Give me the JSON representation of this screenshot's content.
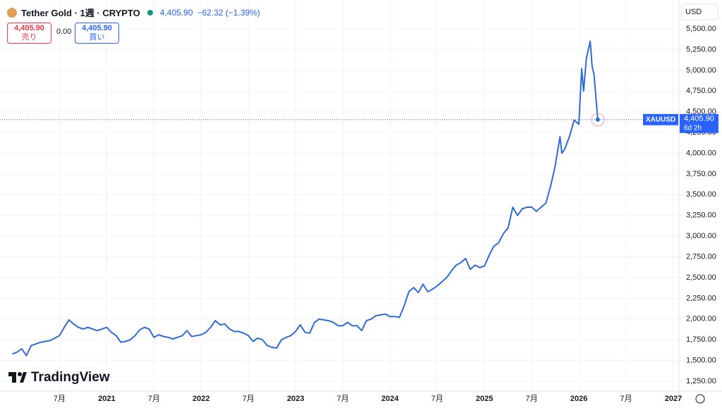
{
  "header": {
    "symbol": "Tether Gold · 1週 · CRYPTO",
    "price": "4,405.90",
    "change": "−62.32 (−1.39%)",
    "sell_price": "4,405.90",
    "sell_label": "売り",
    "spread": "0.00",
    "buy_price": "4,405.90",
    "buy_label": "買い",
    "currency": "USD",
    "logo": "TradingView",
    "last_price_label": "4,405.90",
    "countdown": "6d 2h"
  },
  "chart_data": {
    "type": "line",
    "series": [
      {
        "name": "XAUUSD",
        "color": "#2f6bd8",
        "x": [
          2020.0,
          2020.05,
          2020.1,
          2020.15,
          2020.2,
          2020.25,
          2020.3,
          2020.35,
          2020.4,
          2020.45,
          2020.5,
          2020.55,
          2020.6,
          2020.65,
          2020.7,
          2020.75,
          2020.8,
          2020.85,
          2020.9,
          2020.95,
          2021.0,
          2021.05,
          2021.1,
          2021.15,
          2021.2,
          2021.25,
          2021.3,
          2021.35,
          2021.4,
          2021.45,
          2021.5,
          2021.55,
          2021.6,
          2021.65,
          2021.7,
          2021.75,
          2021.8,
          2021.85,
          2021.9,
          2021.95,
          2022.0,
          2022.05,
          2022.1,
          2022.15,
          2022.2,
          2022.25,
          2022.3,
          2022.35,
          2022.4,
          2022.45,
          2022.5,
          2022.55,
          2022.6,
          2022.65,
          2022.7,
          2022.75,
          2022.8,
          2022.85,
          2022.9,
          2022.95,
          2023.0,
          2023.05,
          2023.1,
          2023.15,
          2023.2,
          2023.25,
          2023.3,
          2023.35,
          2023.4,
          2023.45,
          2023.5,
          2023.55,
          2023.6,
          2023.65,
          2023.7,
          2023.75,
          2023.8,
          2023.85,
          2023.9,
          2023.95,
          2024.0,
          2024.05,
          2024.1,
          2024.15,
          2024.2,
          2024.25,
          2024.3,
          2024.35,
          2024.4,
          2024.45,
          2024.5,
          2024.55,
          2024.6,
          2024.65,
          2024.7,
          2024.75,
          2024.8,
          2024.85,
          2024.9,
          2024.95,
          2025.0,
          2025.05,
          2025.1,
          2025.15,
          2025.2,
          2025.25,
          2025.3,
          2025.35,
          2025.4,
          2025.45,
          2025.5,
          2025.55,
          2025.6,
          2025.65,
          2025.7,
          2025.75,
          2025.8,
          2025.82,
          2025.85,
          2025.9,
          2025.95,
          2026.0,
          2026.03,
          2026.05,
          2026.08,
          2026.12,
          2026.14,
          2026.16,
          2026.2
        ],
        "values": [
          1580,
          1600,
          1640,
          1560,
          1680,
          1700,
          1720,
          1730,
          1740,
          1770,
          1800,
          1900,
          1990,
          1940,
          1900,
          1880,
          1900,
          1880,
          1860,
          1880,
          1900,
          1840,
          1800,
          1720,
          1730,
          1750,
          1800,
          1870,
          1900,
          1880,
          1780,
          1810,
          1790,
          1780,
          1760,
          1780,
          1800,
          1860,
          1790,
          1800,
          1810,
          1840,
          1900,
          1980,
          1930,
          1940,
          1880,
          1850,
          1850,
          1830,
          1800,
          1730,
          1770,
          1750,
          1680,
          1660,
          1650,
          1750,
          1780,
          1800,
          1850,
          1930,
          1840,
          1830,
          1960,
          2000,
          1990,
          1980,
          1960,
          1920,
          1920,
          1960,
          1920,
          1920,
          1860,
          1980,
          2000,
          2040,
          2050,
          2060,
          2030,
          2030,
          2020,
          2160,
          2330,
          2380,
          2320,
          2420,
          2330,
          2360,
          2400,
          2450,
          2500,
          2580,
          2650,
          2680,
          2730,
          2600,
          2650,
          2620,
          2640,
          2770,
          2880,
          2920,
          3030,
          3100,
          3350,
          3250,
          3330,
          3350,
          3350,
          3300,
          3350,
          3400,
          3600,
          3850,
          4200,
          4000,
          4050,
          4200,
          4400,
          4350,
          5020,
          4750,
          5150,
          5350,
          5050,
          4950,
          4405.9
        ]
      }
    ],
    "xlim": [
      2019.87,
      2027.06
    ],
    "xticks": [
      {
        "value": 2020.5,
        "label": "7月"
      },
      2021,
      {
        "value": 2021.5,
        "label": "7月"
      },
      2022,
      {
        "value": 2022.5,
        "label": "7月"
      },
      2023,
      {
        "value": 2023.5,
        "label": "7月"
      },
      2024,
      {
        "value": 2024.5,
        "label": "7月"
      },
      2025,
      {
        "value": 2025.5,
        "label": "7月"
      },
      2026,
      {
        "value": 2026.5,
        "label": "7月"
      },
      2027
    ],
    "ylim": [
      1131,
      5849
    ],
    "yticks": [
      {
        "value": 1250,
        "label": "1,250.00"
      },
      {
        "value": 1500,
        "label": "1,500.00"
      },
      {
        "value": 1750,
        "label": "1,750.00"
      },
      {
        "value": 2000,
        "label": "2,000.00"
      },
      {
        "value": 2250,
        "label": "2,250.00"
      },
      {
        "value": 2500,
        "label": "2,500.00"
      },
      {
        "value": 2750,
        "label": "2,750.00"
      },
      {
        "value": 3000,
        "label": "3,000.00"
      },
      {
        "value": 3250,
        "label": "3,250.00"
      },
      {
        "value": 3500,
        "label": "3,500.00"
      },
      {
        "value": 3750,
        "label": "3,750.00"
      },
      {
        "value": 4000,
        "label": "4,000.00"
      },
      {
        "value": 4250,
        "label": "4,250.00"
      },
      {
        "value": 4500,
        "label": "4,500.00"
      },
      {
        "value": 4750,
        "label": "4,750.00"
      },
      {
        "value": 5000,
        "label": "5,000.00"
      },
      {
        "value": 5250,
        "label": "5,250.00"
      },
      {
        "value": 5500,
        "label": "5,500.00"
      }
    ],
    "grid": true
  }
}
